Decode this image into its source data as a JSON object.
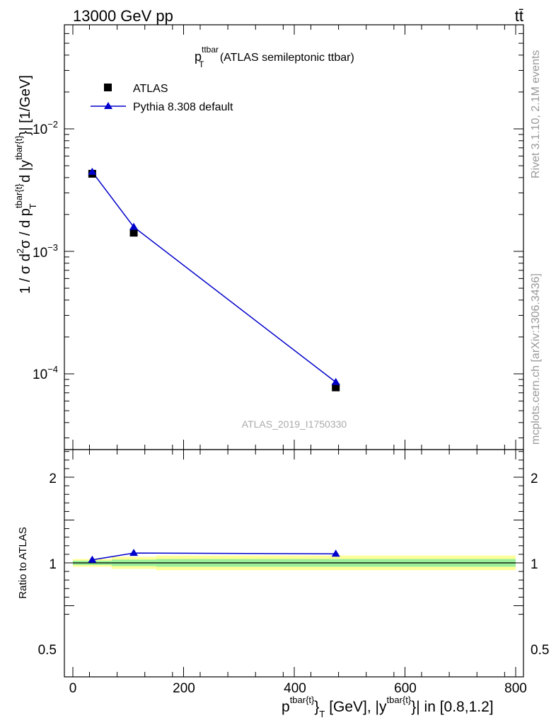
{
  "header": {
    "energy": "13000 GeV pp",
    "process": "tt̄"
  },
  "side_labels": {
    "rivet": "Rivet 3.1.10,  2.1M events",
    "mcplots": "mcplots.cern.ch [arXiv:1306.3436]"
  },
  "chart_data": [
    {
      "type": "scatter",
      "panel": "main",
      "title": "p_T^ttbar (ATLAS semileptonic ttbar)",
      "title_main": "p",
      "title_sup": "ttbar",
      "title_sub": "T",
      "title_rest": " (ATLAS semileptonic ttbar)",
      "ylabel": "1 / σ d²σ / d p^tbar{t}_T d |y^tbar{t}| [1/GeV]",
      "yscale": "log",
      "xlim": [
        -15,
        815
      ],
      "ylim": [
        2.5e-05,
        0.1
      ],
      "ytick_labels": [
        "10⁻⁴",
        "10⁻³",
        "10⁻²"
      ],
      "ytick_values": [
        0.0001,
        0.001,
        0.01
      ],
      "watermark": "ATLAS_2019_I1750330",
      "legend": {
        "placement": "top-left",
        "entries": [
          "ATLAS",
          "Pythia 8.308 default"
        ]
      },
      "series": [
        {
          "name": "ATLAS",
          "marker": "square",
          "color": "#000000",
          "x": [
            35,
            110,
            475
          ],
          "y": [
            0.0043,
            0.00142,
            7.75e-05
          ]
        },
        {
          "name": "Pythia 8.308 default",
          "marker": "triangle",
          "color": "#0000cc",
          "x": [
            35,
            110,
            475
          ],
          "y": [
            0.00445,
            0.00158,
            8.55e-05
          ]
        }
      ]
    },
    {
      "type": "line",
      "panel": "ratio",
      "ylabel": "Ratio to ATLAS",
      "ylim": [
        0.35,
        2.3
      ],
      "ytick_labels": [
        "0.5",
        "1",
        "2"
      ],
      "ytick_values": [
        0.5,
        1,
        2
      ],
      "xlabel": "p^tbar{t}_T [GeV], |y^tbar{t}| in [0.8,1.2]",
      "xtick_labels": [
        "0",
        "200",
        "400",
        "600",
        "800"
      ],
      "xtick_values": [
        0,
        200,
        400,
        600,
        800
      ],
      "bands": {
        "outer_color": "#ffff99",
        "inner_color": "#99ee99",
        "bins": [
          {
            "x": [
              0,
              70
            ],
            "outer": [
              0.955,
              1.045
            ],
            "inner": [
              0.975,
              1.025
            ]
          },
          {
            "x": [
              70,
              150
            ],
            "outer": [
              0.93,
              1.07
            ],
            "inner": [
              0.962,
              1.038
            ]
          },
          {
            "x": [
              150,
              800
            ],
            "outer": [
              0.915,
              1.085
            ],
            "inner": [
              0.955,
              1.045
            ]
          }
        ]
      },
      "series": [
        {
          "name": "Pythia 8.308 default",
          "color": "#0000cc",
          "x": [
            35,
            110,
            475
          ],
          "y": [
            1.035,
            1.115,
            1.105
          ]
        }
      ]
    }
  ]
}
